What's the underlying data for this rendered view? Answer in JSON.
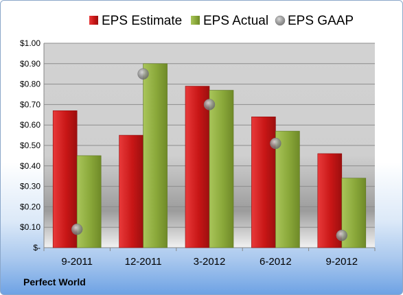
{
  "chart_data": {
    "type": "bar",
    "categories": [
      "9-2011",
      "12-2011",
      "3-2012",
      "6-2012",
      "9-2012"
    ],
    "series": [
      {
        "name": "EPS Estimate",
        "kind": "bar",
        "color": "#cc1f1f",
        "values": [
          0.67,
          0.55,
          0.79,
          0.64,
          0.46
        ]
      },
      {
        "name": "EPS Actual",
        "kind": "bar",
        "color": "#8fae3a",
        "values": [
          0.45,
          0.9,
          0.77,
          0.57,
          0.34
        ]
      },
      {
        "name": "EPS GAAP",
        "kind": "marker",
        "color": "#9a9a9a",
        "values": [
          0.09,
          0.85,
          0.7,
          0.51,
          0.06
        ]
      }
    ],
    "ylim": [
      0,
      1.0
    ],
    "yticks": [
      {
        "value": 1.0,
        "label": "$1.00"
      },
      {
        "value": 0.9,
        "label": "$0.90"
      },
      {
        "value": 0.8,
        "label": "$0.80"
      },
      {
        "value": 0.7,
        "label": "$0.70"
      },
      {
        "value": 0.6,
        "label": "$0.60"
      },
      {
        "value": 0.5,
        "label": "$0.50"
      },
      {
        "value": 0.4,
        "label": "$0.40"
      },
      {
        "value": 0.3,
        "label": "$0.30"
      },
      {
        "value": 0.2,
        "label": "$0.20"
      },
      {
        "value": 0.1,
        "label": "$0.10"
      },
      {
        "value": 0.0,
        "label": "$-"
      }
    ],
    "grid": true,
    "legend": "top"
  },
  "footer": {
    "company": "Perfect World"
  }
}
